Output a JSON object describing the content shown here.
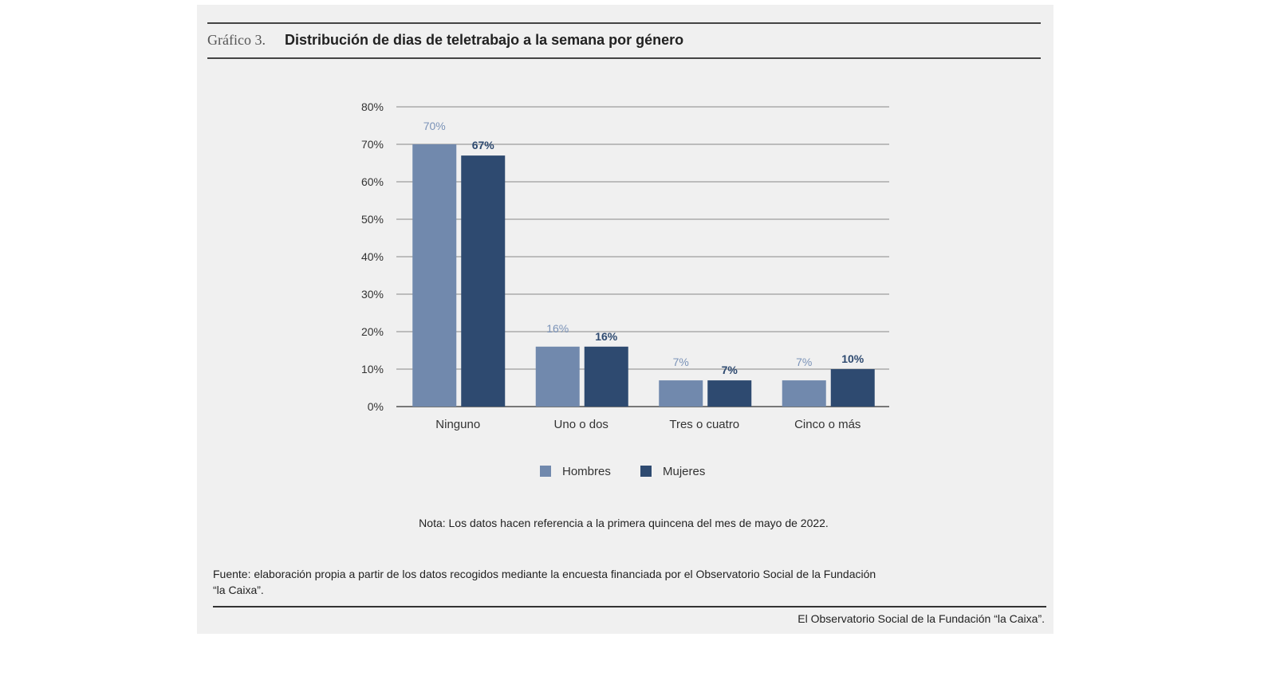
{
  "header": {
    "label": "Gráfico 3.",
    "title": "Distribución de dias de teletrabajo a la semana por género"
  },
  "chart_data": {
    "type": "bar",
    "title": "Distribución de dias de teletrabajo a la semana por género",
    "categories": [
      "Ninguno",
      "Uno o dos",
      "Tres o cuatro",
      "Cinco o más"
    ],
    "series": [
      {
        "name": "Hombres",
        "values": [
          70,
          16,
          7,
          7
        ],
        "labels": [
          "70%",
          "16%",
          "7%",
          "7%"
        ],
        "color": "#7189ad"
      },
      {
        "name": "Mujeres",
        "values": [
          67,
          16,
          7,
          10
        ],
        "labels": [
          "67%",
          "16%",
          "7%",
          "10%"
        ],
        "color": "#2e4a70"
      }
    ],
    "ylim": [
      0,
      80
    ],
    "yticks": [
      "0%",
      "10%",
      "20%",
      "30%",
      "40%",
      "50%",
      "60%",
      "70%",
      "80%"
    ],
    "grid": true,
    "legend": "bottom"
  },
  "note": "Nota: Los datos hacen referencia a la primera quincena del mes de mayo de 2022.",
  "source_line1": "Fuente: elaboración propia a partir de los datos recogidos mediante la encuesta financiada por el Observatorio Social de la Fundación",
  "source_line2": "“la Caixa”.",
  "footer": "El Observatorio Social de la Fundación “la Caixa”."
}
